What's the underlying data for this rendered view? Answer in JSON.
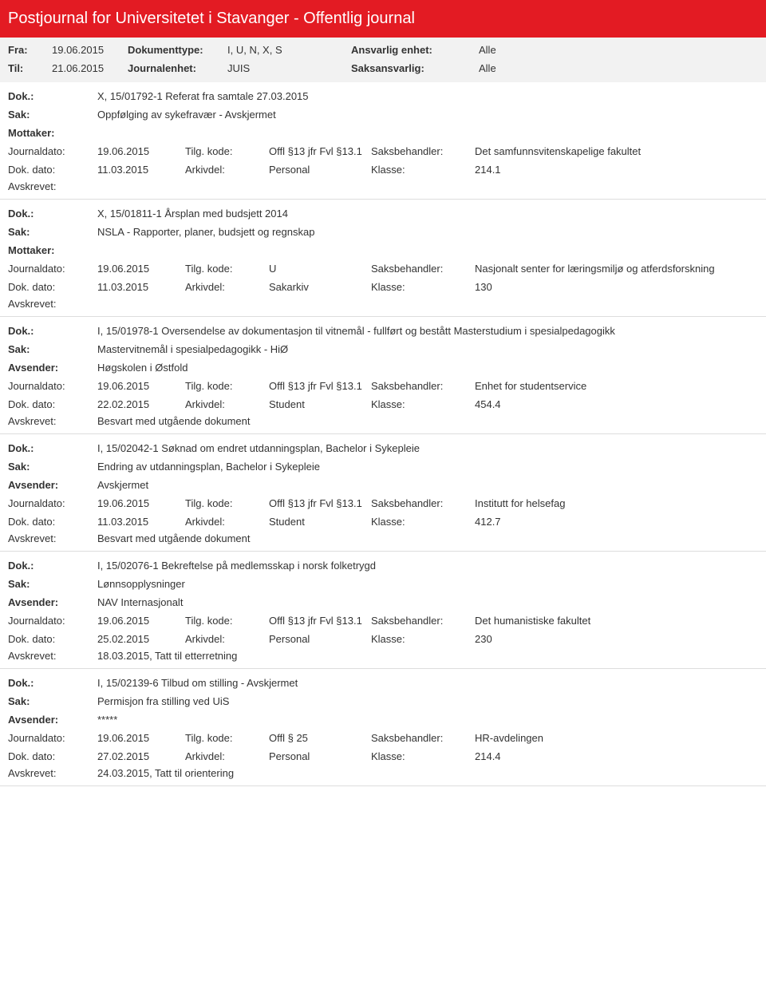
{
  "header": {
    "title": "Postjournal for Universitetet i Stavanger - Offentlig journal"
  },
  "meta": {
    "fra_label": "Fra:",
    "fra_value": "19.06.2015",
    "til_label": "Til:",
    "til_value": "21.06.2015",
    "dokumenttype_label": "Dokumenttype:",
    "dokumenttype_value": "I, U, N, X, S",
    "journalenhet_label": "Journalenhet:",
    "journalenhet_value": "JUIS",
    "ansvarlig_label": "Ansvarlig enhet:",
    "ansvarlig_value": "Alle",
    "saksansvarlig_label": "Saksansvarlig:",
    "saksansvarlig_value": "Alle"
  },
  "labels": {
    "dok": "Dok.:",
    "sak": "Sak:",
    "mottaker": "Mottaker:",
    "avsender": "Avsender:",
    "journaldato": "Journaldato:",
    "dokdato": "Dok. dato:",
    "tilgkode": "Tilg. kode:",
    "arkivdel": "Arkivdel:",
    "saksbehandler": "Saksbehandler:",
    "klasse": "Klasse:",
    "avskrevet": "Avskrevet:"
  },
  "entries": [
    {
      "dok": "X, 15/01792-1 Referat fra samtale 27.03.2015",
      "sak": "Oppfølging av sykefravær - Avskjermet",
      "party_label": "Mottaker:",
      "party_value": "",
      "journaldato": "19.06.2015",
      "tilgkode": "Offl §13 jfr Fvl §13.1",
      "saksbehandler": "Det samfunnsvitenskapelige fakultet",
      "dokdato": "11.03.2015",
      "arkivdel": "Personal",
      "klasse": "214.1",
      "avskrevet": ""
    },
    {
      "dok": "X, 15/01811-1 Årsplan med budsjett  2014",
      "sak": "NSLA - Rapporter, planer, budsjett og regnskap",
      "party_label": "Mottaker:",
      "party_value": "",
      "journaldato": "19.06.2015",
      "tilgkode": "U",
      "saksbehandler": "Nasjonalt senter for læringsmiljø og atferdsforskning",
      "dokdato": "11.03.2015",
      "arkivdel": "Sakarkiv",
      "klasse": "130",
      "avskrevet": ""
    },
    {
      "dok": "I, 15/01978-1 Oversendelse av dokumentasjon til vitnemål - fullført og bestått Masterstudium i spesialpedagogikk",
      "sak": "Mastervitnemål i spesialpedagogikk - HiØ",
      "party_label": "Avsender:",
      "party_value": "Høgskolen i Østfold",
      "journaldato": "19.06.2015",
      "tilgkode": "Offl §13 jfr Fvl §13.1",
      "saksbehandler": "Enhet for studentservice",
      "dokdato": "22.02.2015",
      "arkivdel": "Student",
      "klasse": "454.4",
      "avskrevet": "Besvart med utgående dokument"
    },
    {
      "dok": "I, 15/02042-1 Søknad om endret utdanningsplan, Bachelor i Sykepleie",
      "sak": "Endring av utdanningsplan, Bachelor i Sykepleie",
      "party_label": "Avsender:",
      "party_value": "Avskjermet",
      "journaldato": "19.06.2015",
      "tilgkode": "Offl §13 jfr Fvl §13.1",
      "saksbehandler": "Institutt for helsefag",
      "dokdato": "11.03.2015",
      "arkivdel": "Student",
      "klasse": "412.7",
      "avskrevet": "Besvart med utgående dokument"
    },
    {
      "dok": "I, 15/02076-1 Bekreftelse på medlemsskap i norsk folketrygd",
      "sak": "Lønnsopplysninger",
      "party_label": "Avsender:",
      "party_value": "NAV Internasjonalt",
      "journaldato": "19.06.2015",
      "tilgkode": "Offl §13 jfr Fvl §13.1",
      "saksbehandler": "Det humanistiske fakultet",
      "dokdato": "25.02.2015",
      "arkivdel": "Personal",
      "klasse": "230",
      "avskrevet": "18.03.2015, Tatt til etterretning"
    },
    {
      "dok": "I, 15/02139-6 Tilbud om stilling - Avskjermet",
      "sak": "Permisjon fra stilling ved UiS",
      "party_label": "Avsender:",
      "party_value": "*****",
      "journaldato": "19.06.2015",
      "tilgkode": "Offl § 25",
      "saksbehandler": "HR-avdelingen",
      "dokdato": "27.02.2015",
      "arkivdel": "Personal",
      "klasse": "214.4",
      "avskrevet": "24.03.2015, Tatt til orientering"
    }
  ]
}
